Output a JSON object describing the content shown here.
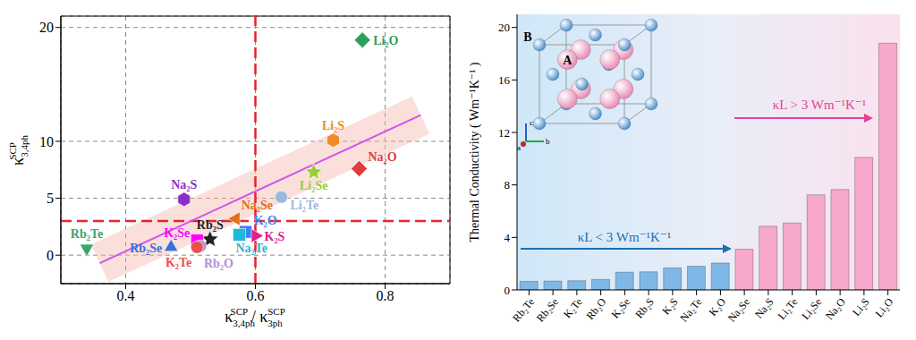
{
  "chart_data": [
    {
      "type": "scatter",
      "x_label": {
        "numerator": {
          "symbol": "κ",
          "sub": "3,4ph",
          "sup": "SCP"
        },
        "separator": "/",
        "denominator": {
          "symbol": "κ",
          "sub": "3ph",
          "sup": "SCP"
        }
      },
      "y_label": {
        "symbol": "κ",
        "sub": "3,4ph",
        "sup": "SCP"
      },
      "xlim": [
        0.3,
        0.9
      ],
      "xticks": [
        0.4,
        0.6,
        0.8
      ],
      "ylim": [
        -2.5,
        21
      ],
      "yticks": [
        0,
        5,
        10,
        20
      ],
      "grid": true,
      "data_labels": true,
      "series": [
        {
          "name": "Li₂O",
          "color": "#2e9e5b",
          "marker": "diamond",
          "x": [
            0.765
          ],
          "values": [
            18.9
          ]
        },
        {
          "name": "Li₂S",
          "color": "#f08a24",
          "marker": "hexagon",
          "x": [
            0.72
          ],
          "values": [
            10.1
          ]
        },
        {
          "name": "Na₂O",
          "color": "#e03c3c",
          "marker": "diamond",
          "x": [
            0.76
          ],
          "values": [
            7.6
          ]
        },
        {
          "name": "Li₂Se",
          "color": "#9acd32",
          "marker": "star",
          "x": [
            0.69
          ],
          "values": [
            7.3
          ]
        },
        {
          "name": "Li₂Te",
          "color": "#9db8e0",
          "marker": "circle",
          "x": [
            0.64
          ],
          "values": [
            5.1
          ]
        },
        {
          "name": "Na₂S",
          "color": "#8b2fc9",
          "marker": "hexagon",
          "x": [
            0.49
          ],
          "values": [
            4.9
          ]
        },
        {
          "name": "Na₂Se",
          "color": "#e0701a",
          "marker": "triangle-left",
          "x": [
            0.57
          ],
          "values": [
            3.2
          ]
        },
        {
          "name": "K₂O",
          "color": "#3b82f6",
          "marker": "square",
          "x": [
            0.585
          ],
          "values": [
            2.05
          ]
        },
        {
          "name": "K₂S",
          "color": "#e0208c",
          "marker": "triangle-right",
          "x": [
            0.6
          ],
          "values": [
            1.7
          ]
        },
        {
          "name": "Na₂Te",
          "color": "#22b8d8",
          "marker": "square",
          "x": [
            0.575
          ],
          "values": [
            1.8
          ]
        },
        {
          "name": "Rb₂S",
          "color": "#222222",
          "marker": "star",
          "x": [
            0.53
          ],
          "values": [
            1.4
          ]
        },
        {
          "name": "K₂Se",
          "color": "#ff00ff",
          "marker": "square",
          "x": [
            0.51
          ],
          "values": [
            1.3
          ]
        },
        {
          "name": "Rb₂O",
          "color": "#b48fd8",
          "marker": "circle",
          "x": [
            0.515
          ],
          "values": [
            0.8
          ]
        },
        {
          "name": "K₂Te",
          "color": "#e8504a",
          "marker": "circle",
          "x": [
            0.51
          ],
          "values": [
            0.7
          ]
        },
        {
          "name": "Rb₂Se",
          "color": "#3a6fd8",
          "marker": "triangle-up",
          "x": [
            0.47
          ],
          "values": [
            0.7
          ]
        },
        {
          "name": "Rb₂Te",
          "color": "#3aa56b",
          "marker": "triangle-down",
          "x": [
            0.34
          ],
          "values": [
            0.6
          ]
        }
      ],
      "fit_line": {
        "x": [
          0.36,
          0.855
        ],
        "y": [
          -0.7,
          12.3
        ],
        "color": "#cc55ee"
      },
      "thresholds": [
        {
          "axis": "x",
          "value": 0.6,
          "color": "#e8222a"
        },
        {
          "axis": "y",
          "value": 3,
          "color": "#e8222a"
        }
      ]
    },
    {
      "type": "bar",
      "y_label": "Thermal Conductivity ( Wm⁻¹K⁻¹ )",
      "categories": [
        "Rb₂Te",
        "Rb₂Se",
        "K₂Te",
        "Rb₂O",
        "K₂Se",
        "Rb₂S",
        "K₂S",
        "Na₂Te",
        "K₂O",
        "Na₂Se",
        "Na₂S",
        "Li₂Te",
        "Li₂Se",
        "Na₂O",
        "Li₂S",
        "Li₂O"
      ],
      "values": [
        0.65,
        0.67,
        0.7,
        0.8,
        1.35,
        1.38,
        1.68,
        1.8,
        2.05,
        3.1,
        4.85,
        5.1,
        7.25,
        7.65,
        10.1,
        18.8
      ],
      "colors": [
        "#7fb8e6",
        "#7fb8e6",
        "#7fb8e6",
        "#7fb8e6",
        "#7fb8e6",
        "#7fb8e6",
        "#7fb8e6",
        "#7fb8e6",
        "#7fb8e6",
        "#f7a8cc",
        "#f7a8cc",
        "#f7a8cc",
        "#f7a8cc",
        "#f7a8cc",
        "#f7a8cc",
        "#f7a8cc"
      ],
      "ylim": [
        0,
        21
      ],
      "yticks": [
        0,
        4,
        8,
        12,
        16,
        20
      ],
      "grid": false,
      "annotations": [
        {
          "text": "κL < 3 Wm⁻¹K⁻¹",
          "color": "#1f6fb0"
        },
        {
          "text": "κL > 3 Wm⁻¹K⁻¹",
          "color": "#e0449a"
        }
      ],
      "inset": {
        "atom_labels": [
          "A",
          "B"
        ],
        "axis_labels": [
          "c",
          "b",
          "a"
        ]
      }
    }
  ]
}
